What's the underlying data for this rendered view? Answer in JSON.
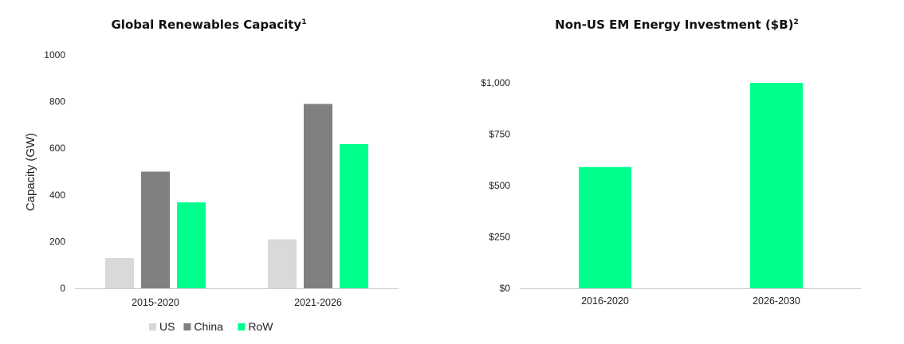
{
  "chart_data": [
    {
      "type": "bar",
      "title": "Global Renewables Capacity",
      "title_sup": "1",
      "ylabel": "Capacity (GW)",
      "xlabel": "",
      "ylim": [
        0,
        1000
      ],
      "yticks": [
        0,
        200,
        400,
        600,
        800,
        1000
      ],
      "ytick_labels": [
        "0",
        "200",
        "400",
        "600",
        "800",
        "1000"
      ],
      "categories": [
        "2015-2020",
        "2021-2026"
      ],
      "series": [
        {
          "name": "US",
          "color": "#d9d9d9",
          "values": [
            130,
            210
          ]
        },
        {
          "name": "China",
          "color": "#808080",
          "values": [
            500,
            790
          ]
        },
        {
          "name": "RoW",
          "color": "#00ff8c",
          "values": [
            368,
            618
          ]
        }
      ],
      "legend": "bottom",
      "grid": false
    },
    {
      "type": "bar",
      "title": "Non-US EM Energy Investment ($B)",
      "title_sup": "2",
      "ylabel": "",
      "xlabel": "",
      "ylim": [
        0,
        1000
      ],
      "yticks": [
        0,
        250,
        500,
        750,
        1000
      ],
      "ytick_labels": [
        "$0",
        "$250",
        "$500",
        "$750",
        "$1,000"
      ],
      "categories": [
        "2016-2020",
        "2026-2030"
      ],
      "series": [
        {
          "color": "#00ff8c",
          "values": [
            590,
            1000
          ]
        }
      ],
      "grid": false
    }
  ]
}
